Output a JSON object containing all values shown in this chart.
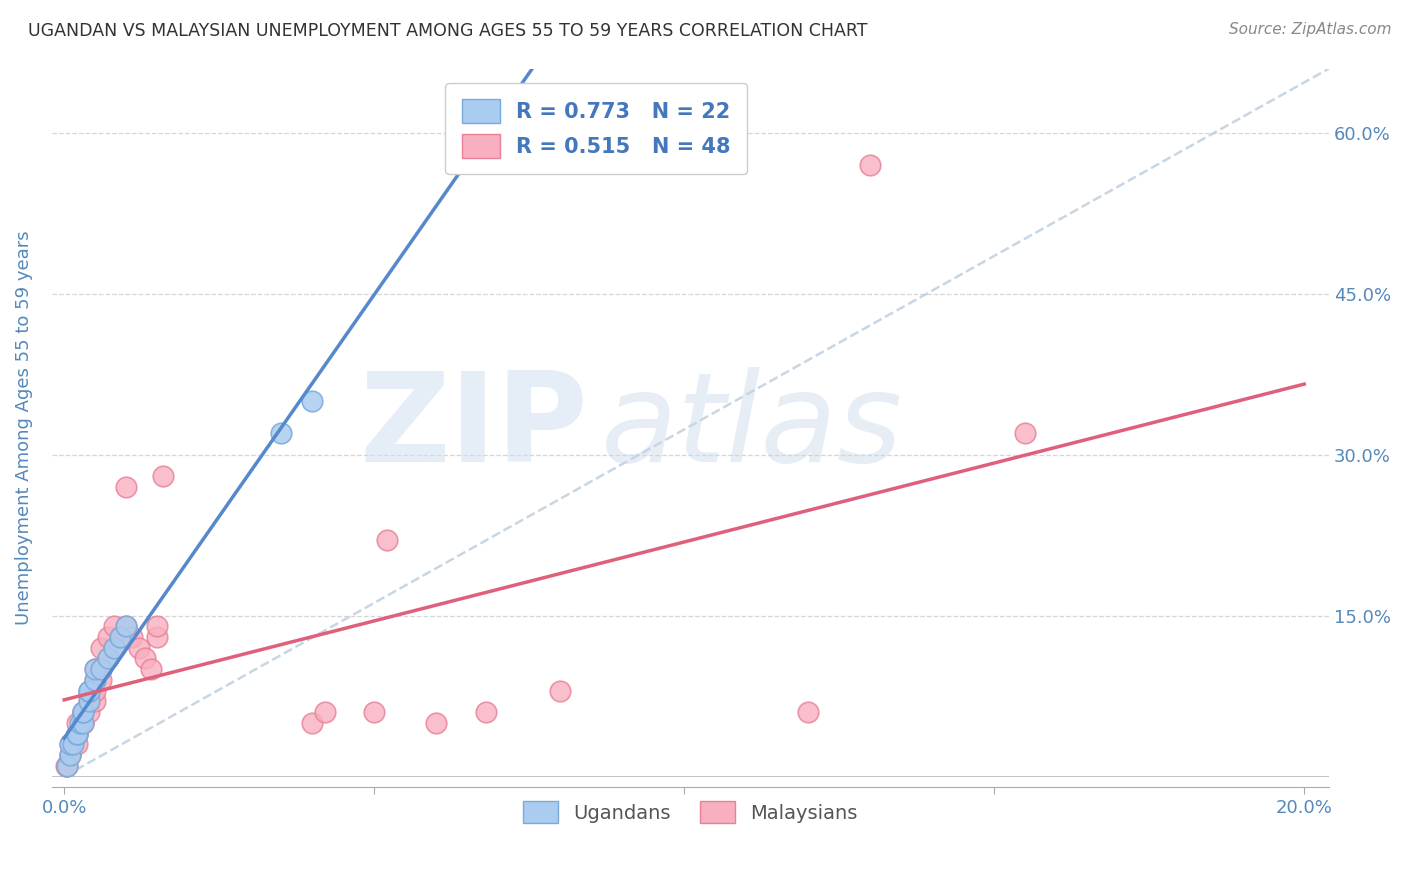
{
  "title": "UGANDAN VS MALAYSIAN UNEMPLOYMENT AMONG AGES 55 TO 59 YEARS CORRELATION CHART",
  "source": "Source: ZipAtlas.com",
  "ylabel": "Unemployment Among Ages 55 to 59 years",
  "watermark_text": "ZIP",
  "watermark_text2": "atlas",
  "ugandan_R": 0.773,
  "ugandan_N": 22,
  "malaysian_R": 0.515,
  "malaysian_N": 48,
  "ugandan_scatter_face": "#AACCF0",
  "ugandan_scatter_edge": "#7AAAD8",
  "malaysian_scatter_face": "#F8B0C0",
  "malaysian_scatter_edge": "#E88098",
  "ugandan_line_color": "#5588CC",
  "malaysian_line_color": "#E0607A",
  "diagonal_line_color": "#BBCCDD",
  "title_color": "#333333",
  "source_color": "#888888",
  "axis_label_color": "#5588BB",
  "tick_color": "#5588BB",
  "background_color": "#FFFFFF",
  "grid_color": "#CCCCCC",
  "legend_text_color": "#4477BB",
  "ugandan_x": [
    0.0005,
    0.001,
    0.001,
    0.0015,
    0.002,
    0.002,
    0.0025,
    0.003,
    0.003,
    0.003,
    0.004,
    0.004,
    0.004,
    0.005,
    0.005,
    0.006,
    0.007,
    0.008,
    0.009,
    0.01,
    0.035,
    0.04
  ],
  "ugandan_y": [
    0.01,
    0.02,
    0.03,
    0.03,
    0.04,
    0.04,
    0.05,
    0.05,
    0.06,
    0.06,
    0.07,
    0.08,
    0.08,
    0.09,
    0.1,
    0.1,
    0.11,
    0.12,
    0.13,
    0.14,
    0.32,
    0.35
  ],
  "malaysian_x": [
    0.0003,
    0.0005,
    0.001,
    0.001,
    0.001,
    0.0015,
    0.002,
    0.002,
    0.002,
    0.002,
    0.003,
    0.003,
    0.003,
    0.003,
    0.004,
    0.004,
    0.004,
    0.005,
    0.005,
    0.005,
    0.005,
    0.006,
    0.006,
    0.006,
    0.007,
    0.007,
    0.008,
    0.008,
    0.009,
    0.01,
    0.01,
    0.011,
    0.012,
    0.013,
    0.014,
    0.015,
    0.015,
    0.016,
    0.04,
    0.042,
    0.05,
    0.052,
    0.06,
    0.068,
    0.08,
    0.12,
    0.13,
    0.155
  ],
  "malaysian_y": [
    0.01,
    0.01,
    0.02,
    0.02,
    0.03,
    0.03,
    0.03,
    0.04,
    0.04,
    0.05,
    0.05,
    0.05,
    0.06,
    0.06,
    0.06,
    0.07,
    0.08,
    0.07,
    0.08,
    0.09,
    0.1,
    0.09,
    0.1,
    0.12,
    0.11,
    0.13,
    0.12,
    0.14,
    0.13,
    0.27,
    0.14,
    0.13,
    0.12,
    0.11,
    0.1,
    0.13,
    0.14,
    0.28,
    0.05,
    0.06,
    0.06,
    0.22,
    0.05,
    0.06,
    0.08,
    0.06,
    0.57,
    0.32
  ],
  "xlim": [
    -0.002,
    0.204
  ],
  "ylim": [
    -0.01,
    0.66
  ],
  "xticks": [
    0.0,
    0.05,
    0.1,
    0.15,
    0.2
  ],
  "xtick_labels": [
    "0.0%",
    "",
    "",
    "",
    "20.0%"
  ],
  "yticks_right": [
    0.15,
    0.3,
    0.45,
    0.6
  ],
  "ytick_right_labels": [
    "15.0%",
    "30.0%",
    "45.0%",
    "60.0%"
  ]
}
